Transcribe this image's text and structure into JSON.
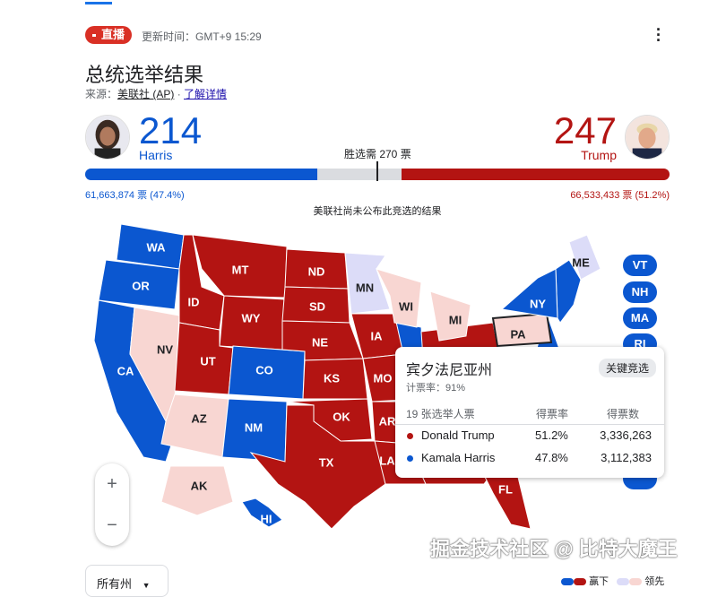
{
  "header": {
    "live_label": "直播",
    "updated": "更新时间：GMT+9 15:29",
    "title": "总统选举结果",
    "source_prefix": "来源：",
    "source_name": "美联社 (AP)",
    "source_sep": " · ",
    "learn_more": "了解详情"
  },
  "harris": {
    "name": "Harris",
    "electoral": "214",
    "votes": "61,663,874 票 (47.4%)",
    "vote_share": 47.4,
    "electoral_share": 0.397
  },
  "trump": {
    "name": "Trump",
    "electoral": "247",
    "votes": "66,533,433 票 (51.2%)",
    "electoral_share": 0.459
  },
  "win_threshold": "胜选需 270 票",
  "note": "美联社尚未公布此竞选的结果",
  "colors": {
    "dem_win": "#0b57d0",
    "rep_win": "#b31412",
    "dem_lead": "#dcdcf8",
    "rep_lead": "#f8d6d2"
  },
  "states": [
    {
      "abbr": "WA",
      "status": "dem_win"
    },
    {
      "abbr": "OR",
      "status": "dem_win"
    },
    {
      "abbr": "CA",
      "status": "dem_win"
    },
    {
      "abbr": "NV",
      "status": "rep_lead"
    },
    {
      "abbr": "ID",
      "status": "rep_win"
    },
    {
      "abbr": "MT",
      "status": "rep_win"
    },
    {
      "abbr": "WY",
      "status": "rep_win"
    },
    {
      "abbr": "UT",
      "status": "rep_win"
    },
    {
      "abbr": "CO",
      "status": "dem_win"
    },
    {
      "abbr": "AZ",
      "status": "rep_lead"
    },
    {
      "abbr": "NM",
      "status": "dem_win"
    },
    {
      "abbr": "ND",
      "status": "rep_win"
    },
    {
      "abbr": "SD",
      "status": "rep_win"
    },
    {
      "abbr": "NE",
      "status": "rep_win"
    },
    {
      "abbr": "KS",
      "status": "rep_win"
    },
    {
      "abbr": "OK",
      "status": "rep_win"
    },
    {
      "abbr": "TX",
      "status": "rep_win"
    },
    {
      "abbr": "MN",
      "status": "dem_lead"
    },
    {
      "abbr": "IA",
      "status": "rep_win"
    },
    {
      "abbr": "MO",
      "status": "rep_win"
    },
    {
      "abbr": "AR",
      "status": "rep_win"
    },
    {
      "abbr": "LA",
      "status": "rep_win"
    },
    {
      "abbr": "WI",
      "status": "rep_lead"
    },
    {
      "abbr": "MI",
      "status": "rep_lead"
    },
    {
      "abbr": "PA",
      "status": "rep_lead"
    },
    {
      "abbr": "NY",
      "status": "dem_win"
    },
    {
      "abbr": "ME",
      "status": "dem_lead"
    },
    {
      "abbr": "FL",
      "status": "rep_win"
    },
    {
      "abbr": "AK",
      "status": "rep_lead"
    },
    {
      "abbr": "HI",
      "status": "dem_win"
    }
  ],
  "small_states": [
    "VT",
    "NH",
    "MA",
    "RI"
  ],
  "tooltip": {
    "state": "宾夕法尼亚州",
    "badge": "关键竞选",
    "counted": "计票率：91%",
    "electors": "19 张选举人票",
    "col_rate": "得票率",
    "col_votes": "得票数",
    "rows": [
      {
        "name": "Donald Trump",
        "rate": "51.2%",
        "votes": "3,336,263",
        "party": "rep"
      },
      {
        "name": "Kamala Harris",
        "rate": "47.8%",
        "votes": "3,112,383",
        "party": "dem"
      }
    ]
  },
  "zoom": {
    "in": "+",
    "out": "−"
  },
  "filter": {
    "selected": "所有州"
  },
  "legend": {
    "won": "赢下",
    "leading": "领先"
  },
  "watermark": "掘金技术社区 @ 比特大魔王"
}
